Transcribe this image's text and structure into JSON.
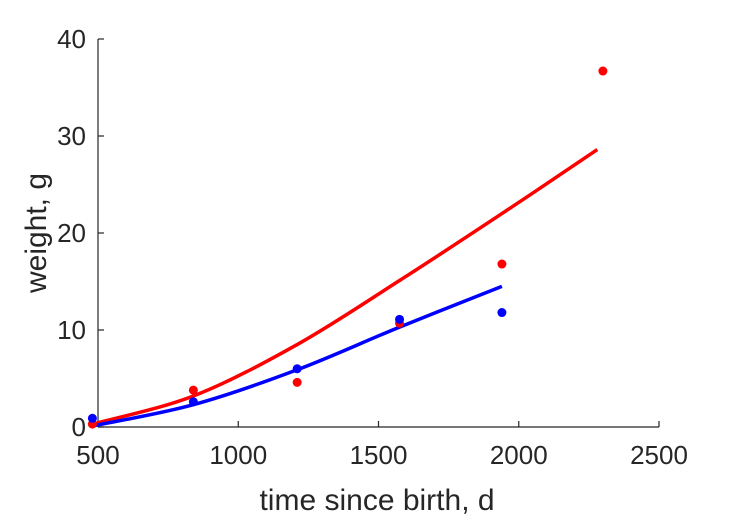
{
  "chart_data": {
    "type": "scatter",
    "title": "",
    "xlabel": "time since birth, d",
    "ylabel": "weight, g",
    "xlim": [
      500,
      2500
    ],
    "ylim": [
      0,
      40
    ],
    "xticks": [
      500,
      1000,
      1500,
      2000,
      2500
    ],
    "yticks": [
      0,
      10,
      20,
      30,
      40
    ],
    "grid": false,
    "legend": "none",
    "series": [
      {
        "color": "#ff0000",
        "points": {
          "x": [
            480,
            840,
            1210,
            1575,
            1940,
            2300
          ],
          "y": [
            0.3,
            3.8,
            4.6,
            10.7,
            16.8,
            36.7
          ]
        },
        "fit_curve": {
          "x": [
            480,
            840,
            1210,
            1575,
            1940,
            2280
          ],
          "y": [
            0.3,
            3.2,
            8.5,
            15.1,
            22.0,
            28.6
          ]
        }
      },
      {
        "color": "#0000ff",
        "points": {
          "x": [
            480,
            840,
            1210,
            1575,
            1940
          ],
          "y": [
            0.9,
            2.6,
            6.0,
            11.1,
            11.8
          ]
        },
        "fit_curve": {
          "x": [
            480,
            840,
            1210,
            1575,
            1940
          ],
          "y": [
            0.1,
            2.3,
            5.9,
            10.3,
            14.5
          ]
        }
      }
    ]
  }
}
